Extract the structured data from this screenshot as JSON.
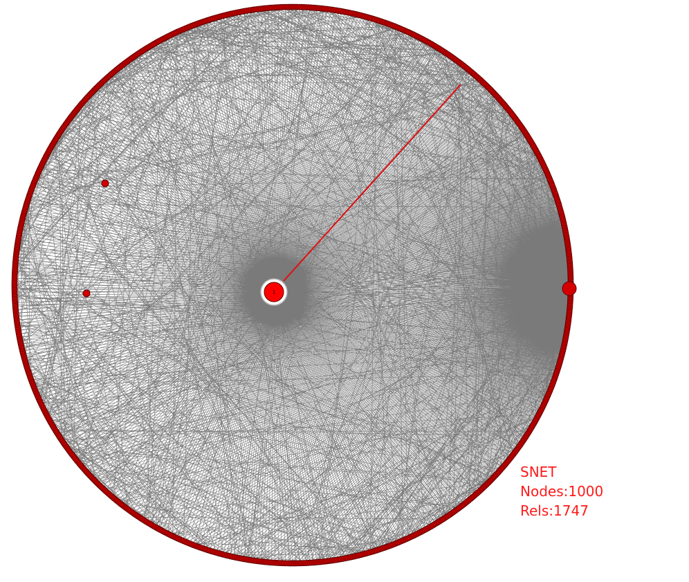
{
  "graph": {
    "name": "SNET",
    "nodes_label": "Nodes:1000",
    "rels_label": "Rels:1747",
    "node_count": 1000,
    "rel_count": 1747,
    "layout": "circular",
    "hub_label": "1",
    "colors": {
      "node_fill": "#d40000",
      "node_stroke": "#5a0000",
      "hub_fill": "#ff0000",
      "edge": "#6b6b6b",
      "highlight_edge": "#e01010",
      "text": "#ff1a1a"
    }
  }
}
